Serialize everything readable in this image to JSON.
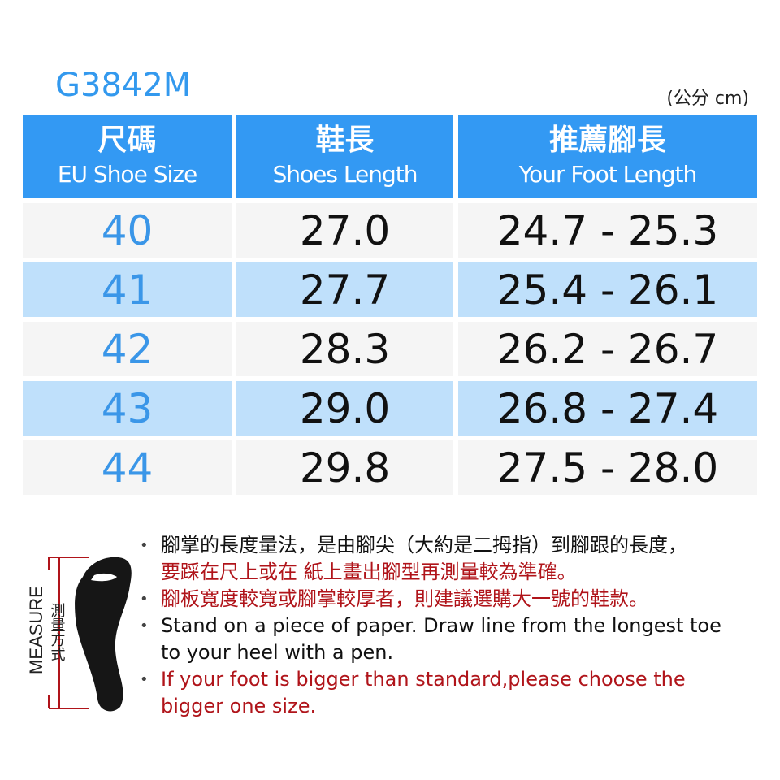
{
  "model": "G3842M",
  "unit": "(公分 cm)",
  "headers": [
    {
      "zh": "尺碼",
      "en": "EU Shoe Size"
    },
    {
      "zh": "鞋長",
      "en": "Shoes Length"
    },
    {
      "zh": "推薦腳長",
      "en": "Your Foot Length"
    }
  ],
  "rows": [
    {
      "size": "40",
      "length": "27.0",
      "foot": "24.7 - 25.3"
    },
    {
      "size": "41",
      "length": "27.7",
      "foot": "25.4 - 26.1"
    },
    {
      "size": "42",
      "length": "28.3",
      "foot": "26.2 - 26.7"
    },
    {
      "size": "43",
      "length": "29.0",
      "foot": "26.8 - 27.4"
    },
    {
      "size": "44",
      "length": "29.8",
      "foot": "27.5 - 28.0"
    }
  ],
  "measure": {
    "en": "MEASURE",
    "zh": "測量方式",
    "icon": "foot-icon"
  },
  "notes": [
    {
      "lines": [
        "腳掌的長度量法，是由腳尖（大約是二拇指）到腳跟的長度，"
      ],
      "color": "#111111"
    },
    {
      "lines": [
        "要踩在尺上或在  紙上畫出腳型再測量較為準確。"
      ],
      "color": "#b0141a",
      "nobullet": true
    },
    {
      "lines": [
        "腳板寬度較寬或腳掌較厚者，則建議選購大一號的鞋款。"
      ],
      "color": "#b0141a"
    },
    {
      "lines": [
        "Stand on a piece of paper. Draw line from the longest toe",
        "to your heel with a pen."
      ],
      "color": "#111111"
    },
    {
      "lines": [
        "If your foot is bigger than standard,please choose the",
        "bigger one size."
      ],
      "color": "#b0141a"
    }
  ],
  "colors": {
    "header": "#3399f3",
    "row_light": "#f5f5f5",
    "row_blue": "#bfe0fb",
    "accent_red": "#b0141a"
  }
}
